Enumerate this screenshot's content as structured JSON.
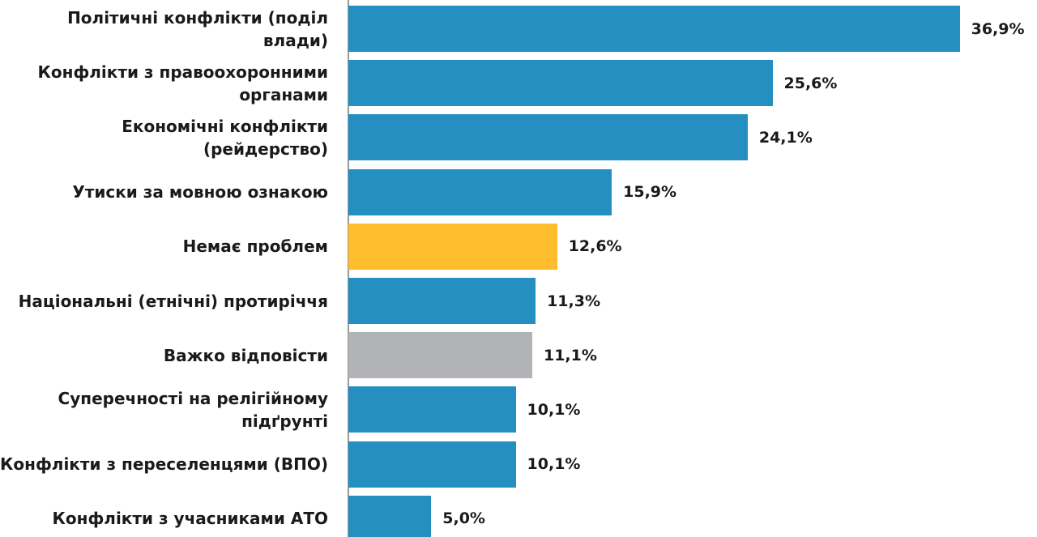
{
  "chart_data": {
    "type": "bar",
    "orientation": "horizontal",
    "categories": [
      "Політичні конфлікти (поділ влади)",
      "Конфлікти з правоохоронними органами",
      "Економічні конфлікти (рейдерство)",
      "Утиски за мовною ознакою",
      "Немає проблем",
      "Національні (етнічні) протиріччя",
      "Важко відповісти",
      "Суперечності на релігійному підґрунті",
      "Конфлікти з переселенцями (ВПО)",
      "Конфлікти з учасниками АТО"
    ],
    "values": [
      36.9,
      25.6,
      24.1,
      15.9,
      12.6,
      11.3,
      11.1,
      10.1,
      10.1,
      5.0
    ],
    "value_labels": [
      "36,9%",
      "25,6%",
      "24,1%",
      "15,9%",
      "12,6%",
      "11,3%",
      "11,1%",
      "10,1%",
      "10,1%",
      "5,0%"
    ],
    "colors": [
      "#248fc0",
      "#248fc0",
      "#248fc0",
      "#248fc0",
      "#fdbd2c",
      "#248fc0",
      "#b2b3b7",
      "#248fc0",
      "#248fc0",
      "#248fc0"
    ],
    "xlim": [
      0,
      40
    ]
  }
}
